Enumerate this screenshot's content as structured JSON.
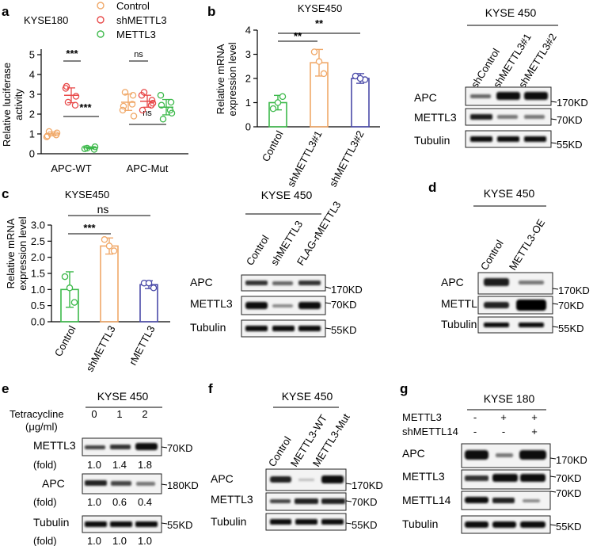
{
  "panels": {
    "a": {
      "letter": "a",
      "cell": "KYSE180",
      "legend": [
        "Control",
        "shMETTL3",
        "METTL3"
      ],
      "ylabel": [
        "Relative luciferase",
        "activity"
      ],
      "yticks": [
        "0",
        "1",
        "2",
        "3",
        "4",
        "5"
      ],
      "xticks": [
        "APC-WT",
        "APC-Mut"
      ],
      "sig": [
        "***",
        "***",
        "ns",
        "ns"
      ]
    },
    "b": {
      "letter": "b",
      "title": "KYSE450",
      "ylabel": [
        "Relative mRNA",
        "expression level"
      ],
      "yticks": [
        "0",
        "1",
        "2",
        "3",
        "4"
      ],
      "xticks": [
        "Control",
        "shMETTL3#1",
        "shMETTL3#2"
      ],
      "sig": [
        "**",
        "**"
      ]
    },
    "b_blot": {
      "cell": "KYSE 450",
      "lanes": [
        "shControl",
        "shMETTL3#1",
        "shMETTL3#2"
      ],
      "rows": [
        "APC",
        "METTL3",
        "Tubulin"
      ],
      "markers": [
        "170KD",
        "70KD",
        "55KD"
      ]
    },
    "c": {
      "letter": "c",
      "title": "KYSE450",
      "ylabel": [
        "Relative mRNA",
        "expression level"
      ],
      "yticks": [
        "0.0",
        "0.5",
        "1.0",
        "1.5",
        "2.0",
        "2.5",
        "3.0"
      ],
      "xticks": [
        "Control",
        "shMETTL3",
        "rMETTL3"
      ],
      "sig": [
        "***",
        "ns"
      ]
    },
    "c_blot": {
      "cell": "KYSE 450",
      "lanes": [
        "Control",
        "shMETTL3",
        "FLAG-rMETTL3"
      ],
      "rows": [
        "APC",
        "METTL3",
        "Tubulin"
      ],
      "markers": [
        "170KD",
        "70KD",
        "55KD"
      ]
    },
    "d": {
      "letter": "d",
      "cell": "KYSE 450",
      "lanes": [
        "Control",
        "METTL3-OE"
      ],
      "rows": [
        "APC",
        "METTL3",
        "Tubulin"
      ],
      "markers": [
        "170KD",
        "70KD",
        "55KD"
      ]
    },
    "e": {
      "letter": "e",
      "cell": "KYSE 450",
      "treatment": [
        "Tetracycline",
        "(μg/ml)"
      ],
      "doses": [
        "0",
        "1",
        "2"
      ],
      "rows": [
        "METTL3",
        "APC",
        "Tubulin"
      ],
      "fold_label": "(fold)",
      "folds": [
        [
          "1.0",
          "1.4",
          "1.8"
        ],
        [
          "1.0",
          "0.6",
          "0.4"
        ],
        [
          "1.0",
          "1.0",
          "1.0"
        ]
      ],
      "markers": [
        "70KD",
        "180KD",
        "55KD"
      ]
    },
    "f": {
      "letter": "f",
      "cell": "KYSE 450",
      "lanes": [
        "Control",
        "METTL3-WT",
        "METTL3-Mut"
      ],
      "rows": [
        "APC",
        "METTL3",
        "Tubulin"
      ],
      "markers": [
        "170KD",
        "70KD",
        "55KD"
      ]
    },
    "g": {
      "letter": "g",
      "cell": "KYSE 180",
      "conditions": [
        {
          "label": "METTL3",
          "signs": [
            "-",
            "+",
            "+"
          ]
        },
        {
          "label": "shMETTL14",
          "signs": [
            "-",
            "-",
            "+"
          ]
        }
      ],
      "rows": [
        "APC",
        "METTL3",
        "METTL14",
        "Tubulin"
      ],
      "markers": [
        "170KD",
        "70KD",
        "70KD",
        "55KD"
      ]
    }
  },
  "chart_data": [
    {
      "type": "scatter",
      "panel": "a",
      "categories": [
        "APC-WT",
        "APC-Mut"
      ],
      "ylabel": "Relative luciferase activity",
      "ylim": [
        0,
        5
      ],
      "colors": {
        "Control": "#f0a868",
        "shMETTL3": "#e84a4a",
        "METTL3": "#3cb94a"
      },
      "series": [
        {
          "name": "Control",
          "values": [
            1.0,
            2.6
          ],
          "points": [
            [
              0.85,
              1.05,
              1.12,
              0.95,
              0.9
            ],
            [
              2.2,
              2.95,
              3.1,
              2.5,
              2.4,
              1.9
            ]
          ]
        },
        {
          "name": "shMETTL3",
          "values": [
            2.95,
            2.65
          ],
          "points": [
            [
              3.3,
              2.9,
              2.6,
              2.45,
              3.4
            ],
            [
              2.95,
              2.7,
              3.1,
              2.45,
              2.2,
              2.55
            ]
          ]
        },
        {
          "name": "METTL3",
          "values": [
            0.3,
            2.35
          ],
          "points": [
            [
              0.25,
              0.35,
              0.28,
              0.22
            ],
            [
              2.95,
              2.6,
              1.75,
              2.2,
              2.45,
              2.05
            ]
          ]
        }
      ]
    },
    {
      "type": "bar",
      "panel": "b",
      "categories": [
        "Control",
        "shMETTL3#1",
        "shMETTL3#2"
      ],
      "values": [
        1.0,
        2.65,
        2.0
      ],
      "errors": [
        0.3,
        0.55,
        0.2
      ],
      "points": [
        [
          0.75,
          1.25,
          1.0
        ],
        [
          3.1,
          2.2,
          2.7
        ],
        [
          2.1,
          1.95,
          2.0
        ]
      ],
      "colors": [
        "#3cb94a",
        "#f0a868",
        "#4a4aa8"
      ],
      "ylabel": "Relative mRNA expression level",
      "ylim": [
        0,
        4
      ]
    },
    {
      "type": "bar",
      "panel": "c",
      "categories": [
        "Control",
        "shMETTL3",
        "rMETTL3"
      ],
      "values": [
        1.0,
        2.35,
        1.15
      ],
      "errors": [
        0.55,
        0.25,
        0.12
      ],
      "points": [
        [
          1.4,
          0.6,
          1.05
        ],
        [
          2.55,
          2.2,
          2.35
        ],
        [
          1.2,
          1.05,
          1.2
        ]
      ],
      "colors": [
        "#3cb94a",
        "#f0a868",
        "#4a4aa8"
      ],
      "ylabel": "Relative mRNA expression level",
      "ylim": [
        0,
        3
      ]
    }
  ]
}
